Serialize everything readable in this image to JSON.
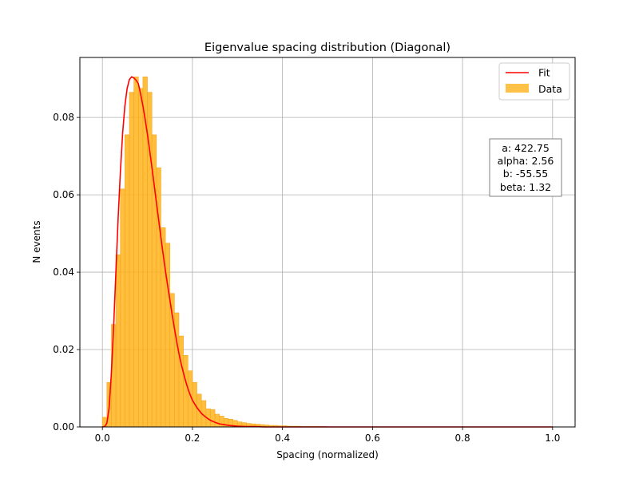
{
  "chart_data": {
    "type": "bar",
    "title": "Eigenvalue spacing distribution (Diagonal)",
    "xlabel": "Spacing (normalized)",
    "ylabel": "N events",
    "xlim": [
      -0.05,
      1.05
    ],
    "ylim": [
      0,
      0.0955
    ],
    "xticks": [
      0.0,
      0.2,
      0.4,
      0.6,
      0.8,
      1.0
    ],
    "xtick_labels": [
      "0.0",
      "0.2",
      "0.4",
      "0.6",
      "0.8",
      "1.0"
    ],
    "yticks": [
      0.0,
      0.02,
      0.04,
      0.06,
      0.08
    ],
    "ytick_labels": [
      "0.00",
      "0.02",
      "0.04",
      "0.06",
      "0.08"
    ],
    "grid": true,
    "legend_position": "top-right",
    "bar_color": "#ffb31a",
    "bar_edge_color": "#f5a623",
    "fit_color": "#ff0000",
    "bins": {
      "bin_width": 0.01,
      "centers": [
        0.005,
        0.015,
        0.025,
        0.035,
        0.045,
        0.055,
        0.065,
        0.075,
        0.085,
        0.095,
        0.105,
        0.115,
        0.125,
        0.135,
        0.145,
        0.155,
        0.165,
        0.175,
        0.185,
        0.195,
        0.205,
        0.215,
        0.225,
        0.235,
        0.245,
        0.255,
        0.265,
        0.275,
        0.285,
        0.295,
        0.305,
        0.315,
        0.325,
        0.335,
        0.345,
        0.355,
        0.365,
        0.375,
        0.385,
        0.395,
        0.405,
        0.415,
        0.425,
        0.435,
        0.445,
        0.455,
        0.465,
        0.475,
        0.485,
        0.495
      ],
      "values": [
        0.0025,
        0.0115,
        0.0265,
        0.0445,
        0.0615,
        0.0755,
        0.0865,
        0.0905,
        0.0875,
        0.0905,
        0.0865,
        0.0755,
        0.067,
        0.0515,
        0.0475,
        0.0345,
        0.0295,
        0.0235,
        0.0185,
        0.0145,
        0.0115,
        0.0085,
        0.0068,
        0.0047,
        0.0045,
        0.0033,
        0.0028,
        0.0022,
        0.002,
        0.0017,
        0.0013,
        0.0011,
        0.0009,
        0.0008,
        0.0007,
        0.0006,
        0.0005,
        0.0004,
        0.0004,
        0.0003,
        0.0003,
        0.0002,
        0.0002,
        0.0002,
        0.0001,
        0.0001,
        0.0001,
        0.0001,
        0.0001,
        0.0001
      ]
    },
    "fit_curve": {
      "x": [
        0.0,
        0.005,
        0.01,
        0.015,
        0.02,
        0.025,
        0.03,
        0.035,
        0.04,
        0.045,
        0.05,
        0.055,
        0.06,
        0.065,
        0.07,
        0.075,
        0.08,
        0.085,
        0.09,
        0.095,
        0.1,
        0.105,
        0.11,
        0.115,
        0.12,
        0.125,
        0.13,
        0.135,
        0.14,
        0.145,
        0.15,
        0.155,
        0.16,
        0.165,
        0.17,
        0.175,
        0.18,
        0.185,
        0.19,
        0.195,
        0.2,
        0.21,
        0.22,
        0.23,
        0.24,
        0.25,
        0.26,
        0.27,
        0.28,
        0.29,
        0.3,
        0.32,
        0.34,
        0.36,
        0.38,
        0.4,
        0.45,
        0.5,
        0.6,
        0.7,
        0.8,
        0.9,
        1.0
      ],
      "y": [
        0.0,
        0.0001,
        0.001,
        0.005,
        0.014,
        0.026,
        0.04,
        0.054,
        0.066,
        0.076,
        0.083,
        0.0875,
        0.0898,
        0.0905,
        0.0902,
        0.0896,
        0.0887,
        0.086,
        0.083,
        0.0795,
        0.0757,
        0.0715,
        0.0671,
        0.0626,
        0.058,
        0.0535,
        0.049,
        0.0446,
        0.0404,
        0.0365,
        0.0328,
        0.029,
        0.0255,
        0.0221,
        0.019,
        0.0163,
        0.014,
        0.0118,
        0.0099,
        0.0083,
        0.0069,
        0.005,
        0.0035,
        0.0025,
        0.0017,
        0.0012,
        0.0008,
        0.0006,
        0.0004,
        0.0003,
        0.0002,
        0.0001,
        0.0001,
        0.0,
        0.0,
        0.0,
        0.0,
        0.0,
        0.0,
        0.0,
        0.0,
        0.0,
        0.0
      ]
    },
    "legend": [
      {
        "label": "Fit",
        "kind": "line"
      },
      {
        "label": "Data",
        "kind": "patch"
      }
    ],
    "annotation_lines": [
      "a: 422.75",
      "alpha: 2.56",
      "b: -55.55",
      "beta: 1.32"
    ]
  }
}
